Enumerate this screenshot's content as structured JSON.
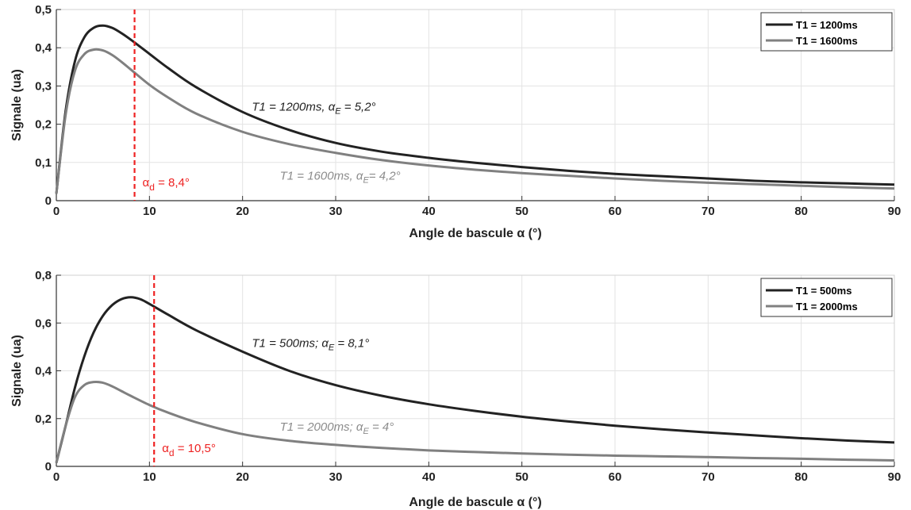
{
  "chart_data": [
    {
      "type": "line",
      "xlabel": "Angle de bascule α (°)",
      "ylabel": "Signale (ua)",
      "xlim": [
        0,
        90
      ],
      "ylim": [
        0,
        0.5
      ],
      "xticks": [
        0,
        10,
        20,
        30,
        40,
        50,
        60,
        70,
        80,
        90
      ],
      "xtick_labels": [
        "0",
        "10",
        "20",
        "30",
        "40",
        "50",
        "60",
        "70",
        "80",
        "90"
      ],
      "yticks": [
        0,
        0.1,
        0.2,
        0.3,
        0.4,
        0.5
      ],
      "ytick_labels": [
        "0",
        "0,1",
        "0,2",
        "0,3",
        "0,4",
        "0,5"
      ],
      "grid": true,
      "legend_position": "top-right",
      "series": [
        {
          "name": "T1 = 1200ms",
          "color": "#222222",
          "x": [
            0,
            1,
            2,
            3,
            4,
            5,
            6,
            7,
            8,
            10,
            12,
            15,
            20,
            25,
            30,
            35,
            40,
            45,
            50,
            55,
            60,
            65,
            70,
            75,
            80,
            85,
            90
          ],
          "y": [
            0.018,
            0.235,
            0.365,
            0.427,
            0.452,
            0.458,
            0.452,
            0.438,
            0.421,
            0.384,
            0.347,
            0.297,
            0.232,
            0.185,
            0.151,
            0.128,
            0.112,
            0.099,
            0.088,
            0.078,
            0.07,
            0.064,
            0.058,
            0.052,
            0.048,
            0.045,
            0.042
          ]
        },
        {
          "name": "T1 = 1600ms",
          "color": "#808080",
          "x": [
            0,
            1,
            2,
            3,
            4,
            5,
            6,
            7,
            8,
            10,
            12,
            15,
            20,
            25,
            30,
            35,
            40,
            45,
            50,
            55,
            60,
            65,
            70,
            75,
            80,
            85,
            90
          ],
          "y": [
            0.018,
            0.225,
            0.34,
            0.383,
            0.395,
            0.393,
            0.381,
            0.363,
            0.343,
            0.303,
            0.27,
            0.228,
            0.18,
            0.148,
            0.125,
            0.106,
            0.092,
            0.081,
            0.072,
            0.065,
            0.058,
            0.052,
            0.047,
            0.043,
            0.039,
            0.035,
            0.032
          ]
        }
      ],
      "annotations": [
        {
          "text": "T1 = 1200ms, α",
          "sub": "E",
          "tail": " = 5,2°",
          "x": 21,
          "y": 0.235,
          "color": "#222222"
        },
        {
          "text": "T1 = 1600ms, α",
          "sub": "E",
          "tail": "= 4,2°",
          "x": 24,
          "y": 0.055,
          "color": "#8c8c8c"
        }
      ],
      "marker": {
        "x": 8.4,
        "label": "α",
        "sub": "d",
        "tail": " = 8,4°",
        "color": "#ee2222"
      }
    },
    {
      "type": "line",
      "xlabel": "Angle de bascule α (°)",
      "ylabel": "Signale (ua)",
      "xlim": [
        0,
        90
      ],
      "ylim": [
        0,
        0.8
      ],
      "xticks": [
        0,
        10,
        20,
        30,
        40,
        50,
        60,
        70,
        80,
        90
      ],
      "xtick_labels": [
        "0",
        "10",
        "20",
        "30",
        "40",
        "50",
        "60",
        "70",
        "80",
        "90"
      ],
      "yticks": [
        0,
        0.2,
        0.4,
        0.6,
        0.8
      ],
      "ytick_labels": [
        "0",
        "0,2",
        "0,4",
        "0,6",
        "0,8"
      ],
      "grid": true,
      "legend_position": "top-right",
      "series": [
        {
          "name": "T1 = 500ms",
          "color": "#222222",
          "x": [
            0,
            1,
            2,
            3,
            4,
            5,
            6,
            7,
            8,
            9,
            10,
            12,
            15,
            20,
            25,
            30,
            35,
            40,
            45,
            50,
            55,
            60,
            65,
            70,
            75,
            80,
            85,
            90
          ],
          "y": [
            0.015,
            0.17,
            0.33,
            0.46,
            0.56,
            0.63,
            0.675,
            0.7,
            0.708,
            0.7,
            0.68,
            0.635,
            0.57,
            0.48,
            0.4,
            0.34,
            0.295,
            0.26,
            0.232,
            0.208,
            0.188,
            0.17,
            0.155,
            0.142,
            0.13,
            0.118,
            0.108,
            0.1
          ]
        },
        {
          "name": "T1 = 2000ms",
          "color": "#808080",
          "x": [
            0,
            1,
            2,
            3,
            4,
            5,
            6,
            7,
            8,
            10,
            12,
            15,
            20,
            25,
            30,
            35,
            40,
            45,
            50,
            55,
            60,
            65,
            70,
            75,
            80,
            85,
            90
          ],
          "y": [
            0.015,
            0.17,
            0.29,
            0.34,
            0.353,
            0.35,
            0.335,
            0.315,
            0.295,
            0.257,
            0.225,
            0.185,
            0.135,
            0.107,
            0.09,
            0.077,
            0.067,
            0.06,
            0.054,
            0.049,
            0.045,
            0.042,
            0.039,
            0.035,
            0.032,
            0.028,
            0.025
          ]
        }
      ],
      "annotations": [
        {
          "text": "T1 = 500ms; α",
          "sub": "E",
          "tail": " = 8,1°",
          "x": 21,
          "y": 0.5,
          "color": "#222222"
        },
        {
          "text": "T1 = 2000ms; α",
          "sub": "E",
          "tail": " = 4°",
          "x": 24,
          "y": 0.15,
          "color": "#8c8c8c"
        }
      ],
      "marker": {
        "x": 10.5,
        "label": "α",
        "sub": "d",
        "tail": " = 10,5°",
        "color": "#ee2222"
      }
    }
  ]
}
